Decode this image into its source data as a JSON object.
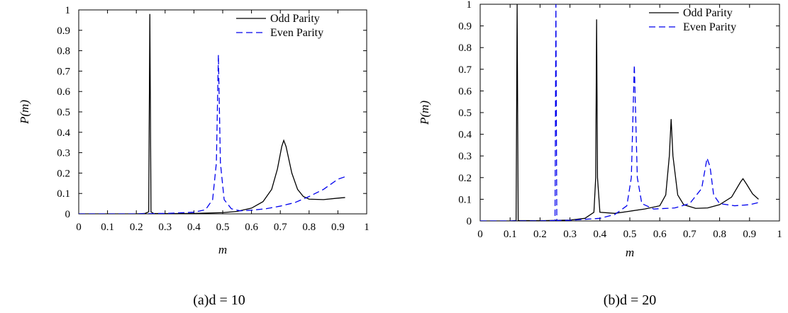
{
  "chart_data": [
    {
      "type": "line",
      "panel": "a",
      "caption": "(a)d = 10",
      "xlabel": "m",
      "ylabel": "P(m)",
      "xlim": [
        0,
        1
      ],
      "ylim": [
        0,
        1
      ],
      "xticks": [
        "0",
        "0.1",
        "0.2",
        "0.3",
        "0.4",
        "0.5",
        "0.6",
        "0.7",
        "0.8",
        "0.9",
        "1"
      ],
      "yticks": [
        "0",
        "0.1",
        "0.2",
        "0.3",
        "0.4",
        "0.5",
        "0.6",
        "0.7",
        "0.8",
        "0.9",
        "1"
      ],
      "legend_position": "top-right",
      "series": [
        {
          "name": "Odd Parity",
          "color": "#000000",
          "style": "solid",
          "points": [
            [
              0.0,
              0.0
            ],
            [
              0.1,
              0.0
            ],
            [
              0.2,
              0.0
            ],
            [
              0.23,
              0.002
            ],
            [
              0.243,
              0.01
            ],
            [
              0.247,
              0.98
            ],
            [
              0.251,
              0.01
            ],
            [
              0.26,
              0.002
            ],
            [
              0.3,
              0.001
            ],
            [
              0.4,
              0.002
            ],
            [
              0.5,
              0.006
            ],
            [
              0.55,
              0.012
            ],
            [
              0.6,
              0.028
            ],
            [
              0.64,
              0.06
            ],
            [
              0.67,
              0.12
            ],
            [
              0.69,
              0.22
            ],
            [
              0.705,
              0.33
            ],
            [
              0.712,
              0.36
            ],
            [
              0.72,
              0.33
            ],
            [
              0.74,
              0.2
            ],
            [
              0.76,
              0.12
            ],
            [
              0.78,
              0.085
            ],
            [
              0.8,
              0.072
            ],
            [
              0.85,
              0.07
            ],
            [
              0.9,
              0.077
            ],
            [
              0.925,
              0.08
            ]
          ]
        },
        {
          "name": "Even Parity",
          "color": "#0000ee",
          "style": "dashed",
          "points": [
            [
              0.0,
              0.0
            ],
            [
              0.1,
              0.0
            ],
            [
              0.2,
              0.0
            ],
            [
              0.3,
              0.002
            ],
            [
              0.4,
              0.008
            ],
            [
              0.44,
              0.02
            ],
            [
              0.465,
              0.07
            ],
            [
              0.478,
              0.25
            ],
            [
              0.485,
              0.78
            ],
            [
              0.492,
              0.25
            ],
            [
              0.505,
              0.07
            ],
            [
              0.53,
              0.025
            ],
            [
              0.56,
              0.015
            ],
            [
              0.6,
              0.018
            ],
            [
              0.65,
              0.025
            ],
            [
              0.7,
              0.038
            ],
            [
              0.75,
              0.055
            ],
            [
              0.8,
              0.085
            ],
            [
              0.85,
              0.12
            ],
            [
              0.9,
              0.17
            ],
            [
              0.925,
              0.182
            ]
          ]
        }
      ]
    },
    {
      "type": "line",
      "panel": "b",
      "caption": "(b)d = 20",
      "xlabel": "m",
      "ylabel": "P(m)",
      "xlim": [
        0,
        1
      ],
      "ylim": [
        0,
        1
      ],
      "xticks": [
        "0",
        "0.1",
        "0.2",
        "0.3",
        "0.4",
        "0.5",
        "0.6",
        "0.7",
        "0.8",
        "0.9",
        "1"
      ],
      "yticks": [
        "0",
        "0.1",
        "0.2",
        "0.3",
        "0.4",
        "0.5",
        "0.6",
        "0.7",
        "0.8",
        "0.9",
        "1"
      ],
      "legend_position": "top-right",
      "series": [
        {
          "name": "Odd Parity",
          "color": "#000000",
          "style": "solid",
          "points": [
            [
              0.0,
              0.0
            ],
            [
              0.1,
              0.0
            ],
            [
              0.12,
              0.002
            ],
            [
              0.1235,
              1.0
            ],
            [
              0.127,
              0.002
            ],
            [
              0.2,
              0.001
            ],
            [
              0.3,
              0.004
            ],
            [
              0.35,
              0.012
            ],
            [
              0.38,
              0.04
            ],
            [
              0.386,
              0.2
            ],
            [
              0.389,
              0.93
            ],
            [
              0.392,
              0.2
            ],
            [
              0.4,
              0.04
            ],
            [
              0.45,
              0.035
            ],
            [
              0.5,
              0.045
            ],
            [
              0.55,
              0.055
            ],
            [
              0.6,
              0.07
            ],
            [
              0.62,
              0.12
            ],
            [
              0.632,
              0.3
            ],
            [
              0.638,
              0.47
            ],
            [
              0.644,
              0.3
            ],
            [
              0.66,
              0.12
            ],
            [
              0.68,
              0.075
            ],
            [
              0.72,
              0.058
            ],
            [
              0.76,
              0.06
            ],
            [
              0.8,
              0.075
            ],
            [
              0.84,
              0.11
            ],
            [
              0.87,
              0.18
            ],
            [
              0.878,
              0.195
            ],
            [
              0.89,
              0.17
            ],
            [
              0.91,
              0.125
            ],
            [
              0.93,
              0.1
            ]
          ]
        },
        {
          "name": "Even Parity",
          "color": "#0000ee",
          "style": "dashed",
          "points": [
            [
              0.0,
              0.0
            ],
            [
              0.1,
              0.0
            ],
            [
              0.2,
              0.0
            ],
            [
              0.25,
              0.002
            ],
            [
              0.253,
              1.0
            ],
            [
              0.256,
              0.002
            ],
            [
              0.3,
              0.003
            ],
            [
              0.4,
              0.012
            ],
            [
              0.45,
              0.03
            ],
            [
              0.49,
              0.07
            ],
            [
              0.505,
              0.2
            ],
            [
              0.515,
              0.72
            ],
            [
              0.525,
              0.2
            ],
            [
              0.54,
              0.08
            ],
            [
              0.58,
              0.055
            ],
            [
              0.65,
              0.06
            ],
            [
              0.7,
              0.08
            ],
            [
              0.74,
              0.15
            ],
            [
              0.758,
              0.29
            ],
            [
              0.768,
              0.25
            ],
            [
              0.78,
              0.12
            ],
            [
              0.8,
              0.08
            ],
            [
              0.85,
              0.07
            ],
            [
              0.9,
              0.075
            ],
            [
              0.93,
              0.085
            ]
          ]
        }
      ]
    }
  ]
}
